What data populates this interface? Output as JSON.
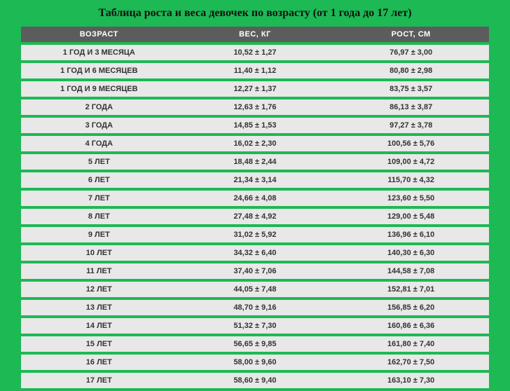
{
  "title": "Таблица роста и веса девочек по возрасту (от 1 года до 17 лет)",
  "background_color": "#1db954",
  "header_bg": "#5c5c5c",
  "header_text_color": "#ffffff",
  "row_bg": "#e8e8e8",
  "row_text_color": "#333333",
  "columns": [
    "ВОЗРАСТ",
    "ВЕС, КГ",
    "РОСТ, СМ"
  ],
  "rows": [
    {
      "age": "1 ГОД И 3 МЕСЯЦА",
      "weight": "10,52 ± 1,27",
      "height": "76,97 ± 3,00"
    },
    {
      "age": "1 ГОД И 6 МЕСЯЦЕВ",
      "weight": "11,40 ± 1,12",
      "height": "80,80 ± 2,98"
    },
    {
      "age": "1 ГОД И 9 МЕСЯЦЕВ",
      "weight": "12,27 ± 1,37",
      "height": "83,75 ± 3,57"
    },
    {
      "age": "2 ГОДА",
      "weight": "12,63 ± 1,76",
      "height": "86,13 ± 3,87"
    },
    {
      "age": "3 ГОДА",
      "weight": "14,85 ± 1,53",
      "height": "97,27 ± 3,78"
    },
    {
      "age": "4 ГОДА",
      "weight": "16,02 ± 2,30",
      "height": "100,56 ± 5,76"
    },
    {
      "age": "5 ЛЕТ",
      "weight": "18,48 ± 2,44",
      "height": "109,00 ± 4,72"
    },
    {
      "age": "6 ЛЕТ",
      "weight": "21,34 ± 3,14",
      "height": "115,70 ± 4,32"
    },
    {
      "age": "7 ЛЕТ",
      "weight": "24,66 ± 4,08",
      "height": "123,60 ± 5,50"
    },
    {
      "age": "8 ЛЕТ",
      "weight": "27,48 ± 4,92",
      "height": "129,00 ± 5,48"
    },
    {
      "age": "9 ЛЕТ",
      "weight": "31,02 ± 5,92",
      "height": "136,96 ± 6,10"
    },
    {
      "age": "10 ЛЕТ",
      "weight": "34,32 ± 6,40",
      "height": "140,30 ± 6,30"
    },
    {
      "age": "11 ЛЕТ",
      "weight": "37,40 ± 7,06",
      "height": "144,58 ± 7,08"
    },
    {
      "age": "12 ЛЕТ",
      "weight": "44,05 ± 7,48",
      "height": "152,81 ± 7,01"
    },
    {
      "age": "13 ЛЕТ",
      "weight": "48,70 ± 9,16",
      "height": "156,85 ± 6,20"
    },
    {
      "age": "14 ЛЕТ",
      "weight": "51,32 ± 7,30",
      "height": "160,86 ± 6,36"
    },
    {
      "age": "15 ЛЕТ",
      "weight": "56,65 ± 9,85",
      "height": "161,80 ± 7,40"
    },
    {
      "age": "16 ЛЕТ",
      "weight": "58,00 ± 9,60",
      "height": "162,70 ± 7,50"
    },
    {
      "age": "17 ЛЕТ",
      "weight": "58,60 ± 9,40",
      "height": "163,10 ± 7,30"
    }
  ]
}
